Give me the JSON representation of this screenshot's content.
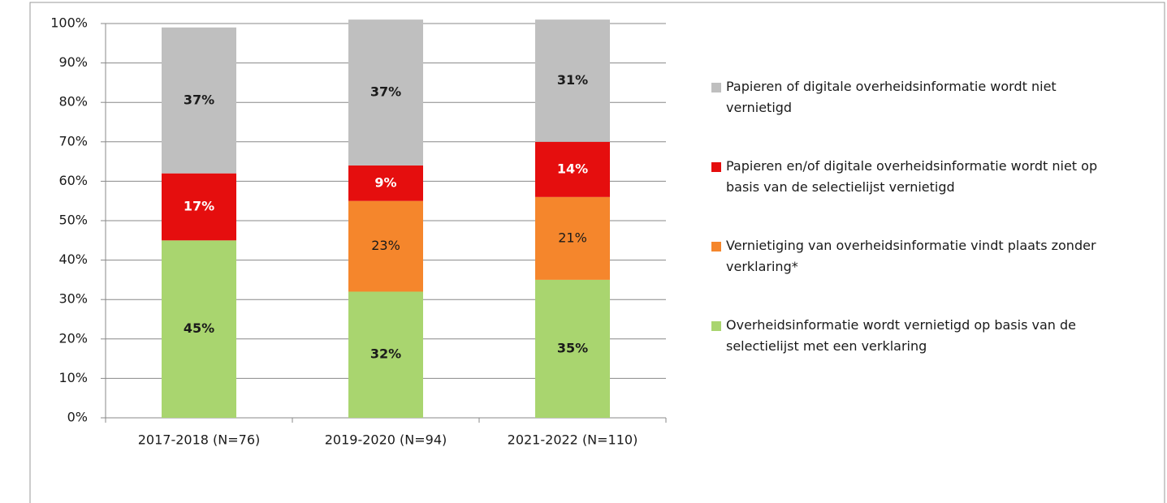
{
  "chart_data": {
    "type": "stacked_bar",
    "categories": [
      "2017-2018 (N=76)",
      "2019-2020 (N=94)",
      "2021-2022 (N=110)"
    ],
    "series": [
      {
        "name": "Overheidsinformatie wordt vernietigd op basis van de selectielijst met een verklaring",
        "color": "#a9d56f",
        "label_color": "#1a1a1a",
        "label_bold": true,
        "values": [
          45,
          32,
          35
        ],
        "value_labels": [
          "45%",
          "32%",
          "35%"
        ]
      },
      {
        "name": "Vernietiging van overheidsinformatie vindt plaats zonder verklaring*",
        "color": "#f5862c",
        "label_color": "#1a1a1a",
        "label_bold": false,
        "values": [
          null,
          23,
          21
        ],
        "value_labels": [
          null,
          "23%",
          "21%"
        ]
      },
      {
        "name": "Papieren en/of digitale overheidsinformatie wordt niet op basis van de selectielijst vernietigd",
        "color": "#e50e0e",
        "label_color": "#ffffff",
        "label_bold": true,
        "values": [
          17,
          9,
          14
        ],
        "value_labels": [
          "17%",
          "9%",
          "14%"
        ]
      },
      {
        "name": "Papieren of digitale overheidsinformatie wordt niet vernietigd",
        "color": "#bfbfbf",
        "label_color": "#1a1a1a",
        "label_bold": true,
        "values": [
          37,
          37,
          31
        ],
        "value_labels": [
          "37%",
          "37%",
          "31%"
        ]
      }
    ],
    "ylim": [
      0,
      100
    ],
    "yticks": [
      {
        "value": 0,
        "label": "0%"
      },
      {
        "value": 10,
        "label": "10%"
      },
      {
        "value": 20,
        "label": "20%"
      },
      {
        "value": 30,
        "label": "30%"
      },
      {
        "value": 40,
        "label": "40%"
      },
      {
        "value": 50,
        "label": "50%"
      },
      {
        "value": 60,
        "label": "60%"
      },
      {
        "value": 70,
        "label": "70%"
      },
      {
        "value": 80,
        "label": "80%"
      },
      {
        "value": 90,
        "label": "90%"
      },
      {
        "value": 100,
        "label": "100%"
      }
    ],
    "grid": true,
    "legend": "right"
  }
}
